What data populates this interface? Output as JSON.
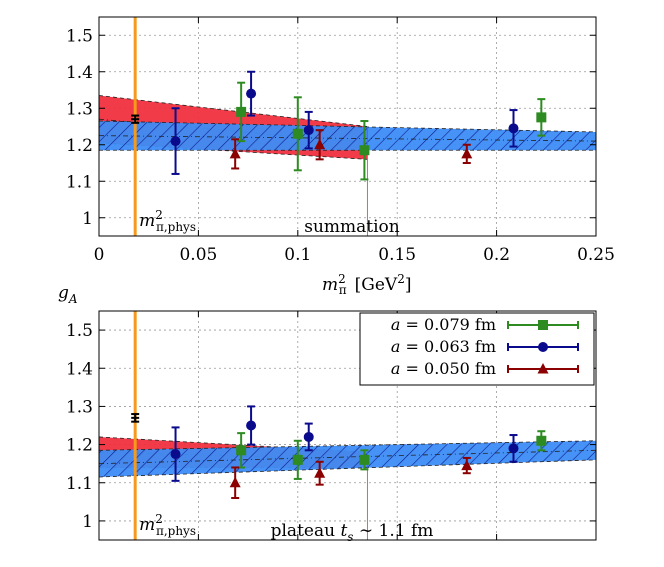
{
  "colors": {
    "series_079": "#2e8b22",
    "series_063": "#0a0a8c",
    "series_050": "#8b0000",
    "physical_point": "#000000",
    "phys_line": "#f59a1c",
    "red_band": "#f0303e",
    "blue_band": "#3d8cf5",
    "blue_hatch": "#0a1a8c"
  },
  "chart_data": [
    {
      "type": "scatter",
      "panel": "top",
      "xlim": [
        0,
        0.25
      ],
      "ylim": [
        0.95,
        1.55
      ],
      "x_ticks": [
        0,
        0.05,
        0.1,
        0.15,
        0.2,
        0.25
      ],
      "x_tick_labels": [
        "0",
        "0.05",
        "0.1",
        "0.15",
        "0.2",
        "0.25"
      ],
      "y_ticks": [
        1,
        1.1,
        1.2,
        1.3,
        1.4,
        1.5
      ],
      "y_tick_labels": [
        "1",
        "1.1",
        "1.2",
        "1.3",
        "1.4",
        "1.5"
      ],
      "grid": true,
      "xlabel_main": "m",
      "xlabel_sup": "2",
      "xlabel_sub": "π",
      "xlabel_unit_open": "[GeV",
      "xlabel_unit_sup": "2",
      "xlabel_unit_close": "]",
      "phys_x": 0.0182,
      "phys_label_main": "m",
      "phys_label_sup": "2",
      "phys_label_sub": "π,phys",
      "annotation": "summation",
      "physical_point": {
        "x": 0.0182,
        "y": 1.27,
        "yerr": 0.01,
        "xerr": 0.002
      },
      "series": [
        {
          "id": "s079",
          "marker": "square",
          "points": [
            {
              "x": 0.0715,
              "y": 1.29,
              "err": 0.08
            },
            {
              "x": 0.1,
              "y": 1.23,
              "err": 0.1
            },
            {
              "x": 0.1335,
              "y": 1.185,
              "err": 0.08
            },
            {
              "x": 0.2225,
              "y": 1.275,
              "err": 0.05
            }
          ]
        },
        {
          "id": "s063",
          "marker": "circle",
          "points": [
            {
              "x": 0.0385,
              "y": 1.21,
              "err": 0.09
            },
            {
              "x": 0.0765,
              "y": 1.34,
              "err": 0.06
            },
            {
              "x": 0.1055,
              "y": 1.24,
              "err": 0.05
            },
            {
              "x": 0.2085,
              "y": 1.245,
              "err": 0.05
            }
          ]
        },
        {
          "id": "s050",
          "marker": "triangle",
          "points": [
            {
              "x": 0.0685,
              "y": 1.175,
              "err": 0.04
            },
            {
              "x": 0.111,
              "y": 1.2,
              "err": 0.04
            },
            {
              "x": 0.185,
              "y": 1.175,
              "err": 0.025
            }
          ]
        }
      ],
      "red_band": {
        "x": [
          0,
          0.135
        ],
        "center": [
          1.27,
          1.205
        ],
        "half_width": [
          0.065,
          0.045
        ]
      },
      "blue_band": {
        "x": [
          0,
          0.25
        ],
        "center": [
          1.225,
          1.21
        ],
        "half_width": [
          0.04,
          0.025
        ]
      }
    },
    {
      "type": "scatter",
      "panel": "bottom",
      "xlim": [
        0,
        0.25
      ],
      "ylim": [
        0.95,
        1.55
      ],
      "y_ticks": [
        1,
        1.1,
        1.2,
        1.3,
        1.4,
        1.5
      ],
      "y_tick_labels": [
        "1",
        "1.1",
        "1.2",
        "1.3",
        "1.4",
        "1.5"
      ],
      "grid": true,
      "ylabel_main": "g",
      "ylabel_sub": "A",
      "phys_x": 0.0182,
      "phys_label_main": "m",
      "phys_label_sup": "2",
      "phys_label_sub": "π,phys",
      "annotation_prefix": "plateau ",
      "annotation_var": "t",
      "annotation_var_sub": "s",
      "annotation_suffix": " ∼ 1.1 fm",
      "legend_position": "top-right",
      "legend": [
        {
          "var": "a",
          "text": " = 0.079 fm",
          "series": "s079"
        },
        {
          "var": "a",
          "text": " = 0.063 fm",
          "series": "s063"
        },
        {
          "var": "a",
          "text": " = 0.050 fm",
          "series": "s050"
        }
      ],
      "physical_point": {
        "x": 0.0182,
        "y": 1.27,
        "yerr": 0.01,
        "xerr": 0.002
      },
      "series": [
        {
          "id": "s079",
          "marker": "square",
          "points": [
            {
              "x": 0.0715,
              "y": 1.185,
              "err": 0.045
            },
            {
              "x": 0.1,
              "y": 1.16,
              "err": 0.05
            },
            {
              "x": 0.1335,
              "y": 1.16,
              "err": 0.025
            },
            {
              "x": 0.2225,
              "y": 1.21,
              "err": 0.025
            }
          ]
        },
        {
          "id": "s063",
          "marker": "circle",
          "points": [
            {
              "x": 0.0385,
              "y": 1.175,
              "err": 0.07
            },
            {
              "x": 0.0765,
              "y": 1.25,
              "err": 0.05
            },
            {
              "x": 0.1055,
              "y": 1.22,
              "err": 0.035
            },
            {
              "x": 0.2085,
              "y": 1.19,
              "err": 0.035
            }
          ]
        },
        {
          "id": "s050",
          "marker": "triangle",
          "points": [
            {
              "x": 0.0685,
              "y": 1.1,
              "err": 0.04
            },
            {
              "x": 0.111,
              "y": 1.125,
              "err": 0.03
            },
            {
              "x": 0.185,
              "y": 1.145,
              "err": 0.02
            }
          ]
        }
      ],
      "red_band": {
        "x": [
          0,
          0.135
        ],
        "center": [
          1.18,
          1.16
        ],
        "half_width": [
          0.04,
          0.02
        ]
      },
      "blue_band": {
        "x": [
          0,
          0.25
        ],
        "center": [
          1.15,
          1.185
        ],
        "half_width": [
          0.035,
          0.025
        ]
      }
    }
  ]
}
